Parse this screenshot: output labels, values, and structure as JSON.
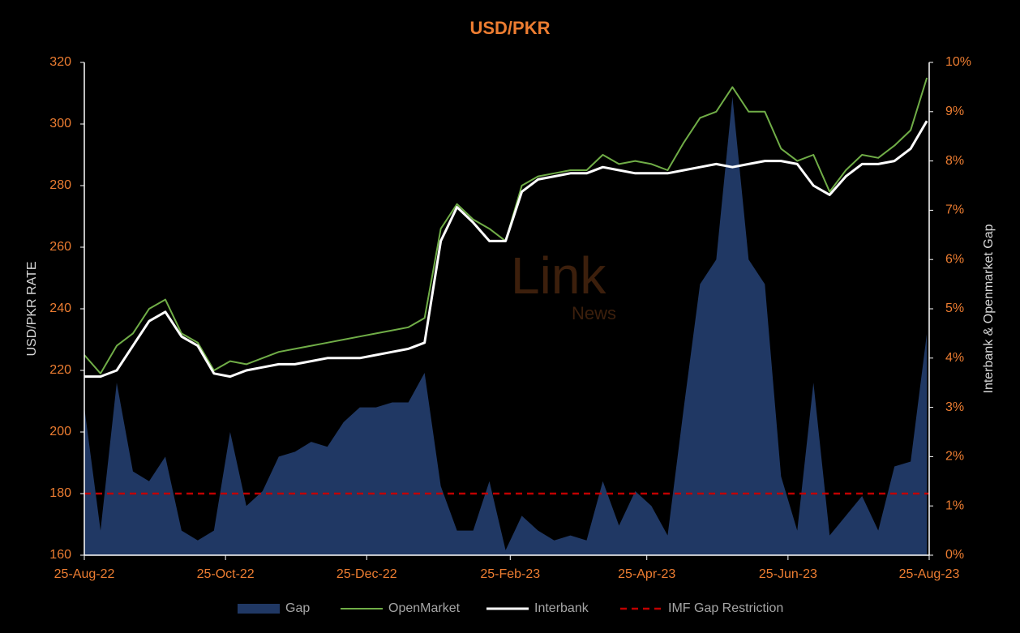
{
  "chart_data": {
    "type": "line",
    "title": "USD/PKR",
    "ylabel": "USD/PKR RATE",
    "y2label": "Interbank & Openmarket Gap",
    "watermark": [
      "Link",
      "News"
    ],
    "x": [
      "2022-08-25",
      "2022-09-01",
      "2022-09-08",
      "2022-09-15",
      "2022-09-22",
      "2022-09-29",
      "2022-10-06",
      "2022-10-13",
      "2022-10-20",
      "2022-10-27",
      "2022-11-03",
      "2022-11-10",
      "2022-11-17",
      "2022-11-24",
      "2022-12-01",
      "2022-12-08",
      "2022-12-15",
      "2022-12-22",
      "2022-12-29",
      "2023-01-05",
      "2023-01-12",
      "2023-01-19",
      "2023-01-26",
      "2023-02-02",
      "2023-02-09",
      "2023-02-16",
      "2023-02-23",
      "2023-03-02",
      "2023-03-09",
      "2023-03-16",
      "2023-03-23",
      "2023-03-30",
      "2023-04-06",
      "2023-04-13",
      "2023-04-20",
      "2023-04-27",
      "2023-05-04",
      "2023-05-11",
      "2023-05-18",
      "2023-05-25",
      "2023-06-01",
      "2023-06-08",
      "2023-06-15",
      "2023-06-22",
      "2023-06-29",
      "2023-07-06",
      "2023-07-13",
      "2023-07-20",
      "2023-07-27",
      "2023-08-03",
      "2023-08-10",
      "2023-08-17",
      "2023-08-24"
    ],
    "xlim": [
      "2022-08-25",
      "2023-08-25"
    ],
    "xticks": [
      {
        "value": "2022-08-25",
        "label": "25-Aug-22"
      },
      {
        "value": "2022-10-25",
        "label": "25-Oct-22"
      },
      {
        "value": "2022-12-25",
        "label": "25-Dec-22"
      },
      {
        "value": "2023-02-25",
        "label": "25-Feb-23"
      },
      {
        "value": "2023-04-25",
        "label": "25-Apr-23"
      },
      {
        "value": "2023-06-25",
        "label": "25-Jun-23"
      },
      {
        "value": "2023-08-25",
        "label": "25-Aug-23"
      }
    ],
    "ylim": [
      160,
      320
    ],
    "yticks": [
      160,
      180,
      200,
      220,
      240,
      260,
      280,
      300,
      320
    ],
    "y2lim": [
      0,
      10
    ],
    "y2ticks": [
      {
        "value": 0,
        "label": "0%"
      },
      {
        "value": 1,
        "label": "1%"
      },
      {
        "value": 2,
        "label": "2%"
      },
      {
        "value": 3,
        "label": "3%"
      },
      {
        "value": 4,
        "label": "4%"
      },
      {
        "value": 5,
        "label": "5%"
      },
      {
        "value": 6,
        "label": "6%"
      },
      {
        "value": 7,
        "label": "7%"
      },
      {
        "value": 8,
        "label": "8%"
      },
      {
        "value": 9,
        "label": "9%"
      },
      {
        "value": 10,
        "label": "10%"
      }
    ],
    "series": [
      {
        "name": "Gap",
        "color": "#203864",
        "axis": "y2",
        "kind": "area",
        "values": [
          3,
          0.5,
          3.5,
          1.7,
          1.5,
          2,
          0.5,
          0.3,
          0.5,
          2.5,
          1,
          1.3,
          2,
          2.1,
          2.3,
          2.2,
          2.7,
          3,
          3,
          3.1,
          3.1,
          3.7,
          1.4,
          0.5,
          0.5,
          1.5,
          0.1,
          0.8,
          0.5,
          0.3,
          0.4,
          0.3,
          1.5,
          0.6,
          1.3,
          1,
          0.4,
          3,
          5.5,
          6,
          9.3,
          6,
          5.5,
          1.6,
          0.5,
          3.5,
          0.4,
          0.8,
          1.2,
          0.5,
          1.8,
          1.9,
          4.5
        ]
      },
      {
        "name": "OpenMarket",
        "color": "#70ad47",
        "kind": "line",
        "values": [
          225,
          219,
          228,
          232,
          240,
          243,
          232,
          229,
          220,
          223,
          222,
          224,
          226,
          227,
          228,
          229,
          230,
          231,
          232,
          233,
          234,
          237,
          266,
          274,
          269,
          266,
          262,
          280,
          283,
          284,
          285,
          285,
          290,
          287,
          288,
          287,
          285,
          294,
          302,
          304,
          312,
          304,
          304,
          292,
          288,
          290,
          278,
          285,
          290,
          289,
          293,
          298,
          315
        ]
      },
      {
        "name": "Interbank",
        "color": "#ffffff",
        "kind": "line",
        "values": [
          218,
          218,
          220,
          228,
          236,
          239,
          231,
          228,
          219,
          218,
          220,
          221,
          222,
          222,
          223,
          224,
          224,
          224,
          225,
          226,
          227,
          229,
          262,
          273,
          268,
          262,
          262,
          278,
          282,
          283,
          284,
          284,
          286,
          285,
          284,
          284,
          284,
          285,
          286,
          287,
          286,
          287,
          288,
          288,
          287,
          280,
          277,
          283,
          287,
          287,
          288,
          292,
          301
        ]
      },
      {
        "name": "IMF Gap Restriction",
        "color": "#c00000",
        "axis": "y2",
        "kind": "hline",
        "value": 1.25
      }
    ]
  }
}
